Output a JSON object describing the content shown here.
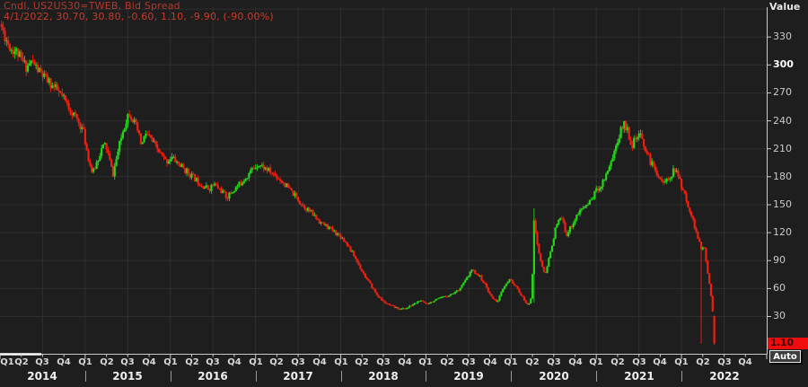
{
  "legend": {
    "series_line": "Cndl, US2US30=TWEB, Bid Spread",
    "quote_line": "4/1/2022, 30.70, 30.80, -0.60, 1.10, -9.90, (-90.00%)"
  },
  "y_axis": {
    "title": "Value",
    "ticks": [
      "330",
      "300",
      "270",
      "240",
      "210",
      "180",
      "150",
      "120",
      "90",
      "60",
      "30"
    ],
    "emphasized_tick": "300",
    "last_price_label": "1.10",
    "auto_button": "Auto"
  },
  "x_axis": {
    "quarters": [
      "Q1",
      "Q2",
      "Q3",
      "Q4"
    ],
    "years": [
      "2014",
      "2015",
      "2016",
      "2017",
      "2018",
      "2019",
      "2020",
      "2021",
      "2022"
    ]
  },
  "colors": {
    "background": "#1e1e1e",
    "grid": "#2f2f2f",
    "axis": "#c9c9c9",
    "up": "#25d61b",
    "down": "#f01f10",
    "legend_red": "#c2352a",
    "badge_bg": "#f00c0c",
    "badge_text": "#300000"
  },
  "chart_data": {
    "type": "candlestick",
    "title": "US2US30=TWEB Bid Spread, weekly candles",
    "interval": "weekly",
    "x_range": [
      "2014 Q1",
      "2022 Q4"
    ],
    "y_visible_range": [
      -10,
      362
    ],
    "y_ticks": [
      30,
      60,
      90,
      120,
      150,
      180,
      210,
      240,
      270,
      300,
      330
    ],
    "grid": "on",
    "legend_position": "top-left",
    "last_candle": {
      "date": "4/1/2022",
      "open": 30.7,
      "high": 30.8,
      "low": -0.6,
      "close": 1.1,
      "change": -9.9,
      "change_pct": "-90.00%"
    },
    "price_path_anchors": {
      "units_t": "quarters since start of 2014-Q1",
      "points": [
        [
          0,
          345
        ],
        [
          0.25,
          330
        ],
        [
          0.5,
          318
        ],
        [
          0.8,
          314
        ],
        [
          1.0,
          305
        ],
        [
          1.25,
          298
        ],
        [
          1.5,
          304
        ],
        [
          1.8,
          294
        ],
        [
          2.1,
          286
        ],
        [
          2.4,
          279
        ],
        [
          2.7,
          272
        ],
        [
          3.0,
          263
        ],
        [
          3.3,
          252
        ],
        [
          3.6,
          242
        ],
        [
          3.9,
          230
        ],
        [
          4.05,
          212
        ],
        [
          4.2,
          195
        ],
        [
          4.35,
          183
        ],
        [
          4.55,
          196
        ],
        [
          4.75,
          209
        ],
        [
          4.95,
          215
        ],
        [
          5.1,
          202
        ],
        [
          5.3,
          182
        ],
        [
          5.55,
          208
        ],
        [
          5.8,
          232
        ],
        [
          6.05,
          250
        ],
        [
          6.25,
          241
        ],
        [
          6.45,
          230
        ],
        [
          6.65,
          213
        ],
        [
          6.85,
          227
        ],
        [
          7.05,
          221
        ],
        [
          7.3,
          212
        ],
        [
          7.55,
          204
        ],
        [
          7.8,
          196
        ],
        [
          8.05,
          201
        ],
        [
          8.3,
          196
        ],
        [
          8.6,
          189
        ],
        [
          8.9,
          183
        ],
        [
          9.2,
          177
        ],
        [
          9.5,
          171
        ],
        [
          9.8,
          167
        ],
        [
          10.05,
          172
        ],
        [
          10.35,
          166
        ],
        [
          10.65,
          158
        ],
        [
          10.95,
          165
        ],
        [
          11.25,
          172
        ],
        [
          11.55,
          180
        ],
        [
          11.85,
          188
        ],
        [
          12.1,
          194
        ],
        [
          12.4,
          190
        ],
        [
          12.7,
          185
        ],
        [
          13.0,
          180
        ],
        [
          13.3,
          174
        ],
        [
          13.6,
          166
        ],
        [
          13.9,
          158
        ],
        [
          14.2,
          150
        ],
        [
          14.5,
          144
        ],
        [
          14.8,
          137
        ],
        [
          15.1,
          130
        ],
        [
          15.4,
          126
        ],
        [
          15.7,
          121
        ],
        [
          16.0,
          116
        ],
        [
          16.3,
          108
        ],
        [
          16.6,
          96
        ],
        [
          16.9,
          83
        ],
        [
          17.2,
          71
        ],
        [
          17.45,
          62
        ],
        [
          17.7,
          53
        ],
        [
          17.95,
          47
        ],
        [
          18.2,
          43
        ],
        [
          18.5,
          40
        ],
        [
          18.8,
          38
        ],
        [
          19.1,
          39
        ],
        [
          19.4,
          43
        ],
        [
          19.7,
          47
        ],
        [
          20.0,
          44
        ],
        [
          20.3,
          46
        ],
        [
          20.7,
          50
        ],
        [
          21.1,
          53
        ],
        [
          21.5,
          58
        ],
        [
          21.9,
          70
        ],
        [
          22.15,
          80
        ],
        [
          22.5,
          74
        ],
        [
          22.8,
          63
        ],
        [
          23.1,
          50
        ],
        [
          23.35,
          46
        ],
        [
          23.65,
          61
        ],
        [
          23.95,
          70
        ],
        [
          24.25,
          61
        ],
        [
          24.55,
          50
        ],
        [
          24.8,
          41
        ],
        [
          24.95,
          52
        ],
        [
          25.1,
          126
        ],
        [
          25.35,
          92
        ],
        [
          25.6,
          74
        ],
        [
          25.85,
          100
        ],
        [
          26.1,
          126
        ],
        [
          26.35,
          137
        ],
        [
          26.6,
          118
        ],
        [
          26.85,
          128
        ],
        [
          27.1,
          139
        ],
        [
          27.4,
          147
        ],
        [
          27.7,
          153
        ],
        [
          27.95,
          164
        ],
        [
          28.25,
          172
        ],
        [
          28.55,
          188
        ],
        [
          28.85,
          207
        ],
        [
          29.1,
          226
        ],
        [
          29.3,
          238
        ],
        [
          29.5,
          228
        ],
        [
          29.65,
          214
        ],
        [
          29.85,
          220
        ],
        [
          30.05,
          224
        ],
        [
          30.25,
          214
        ],
        [
          30.5,
          198
        ],
        [
          30.75,
          188
        ],
        [
          31.0,
          179
        ],
        [
          31.2,
          172
        ],
        [
          31.45,
          181
        ],
        [
          31.7,
          188
        ],
        [
          31.9,
          177
        ],
        [
          32.1,
          163
        ],
        [
          32.35,
          147
        ],
        [
          32.6,
          128
        ],
        [
          32.8,
          112
        ],
        [
          32.95,
          100
        ],
        [
          33.05,
          107
        ],
        [
          33.15,
          90
        ],
        [
          33.3,
          66
        ],
        [
          33.4,
          50
        ],
        [
          33.5,
          28
        ],
        [
          33.57,
          1.1
        ]
      ]
    }
  }
}
